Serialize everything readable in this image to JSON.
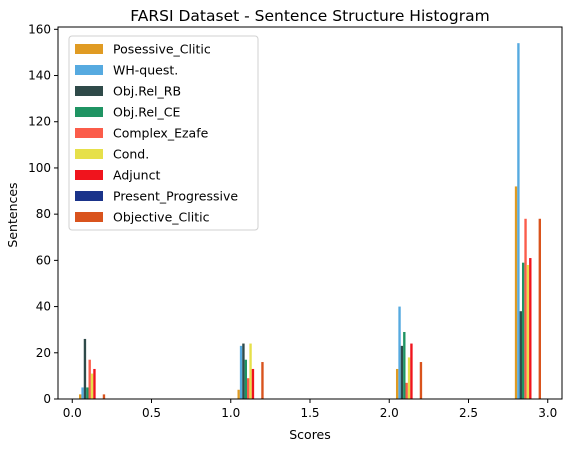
{
  "chart_data": {
    "type": "bar",
    "title": "FARSI Dataset - Sentence Structure Histogram",
    "xlabel": "Scores",
    "ylabel": "Sentences",
    "xlim": [
      -0.09,
      3.09
    ],
    "ylim": [
      0,
      161
    ],
    "xticks": [
      0.0,
      0.5,
      1.0,
      1.5,
      2.0,
      2.5,
      3.0
    ],
    "xtick_labels": [
      "0.0",
      "0.5",
      "1.0",
      "1.5",
      "2.0",
      "2.5",
      "3.0"
    ],
    "yticks": [
      0,
      20,
      40,
      60,
      80,
      100,
      120,
      140,
      160
    ],
    "ytick_labels": [
      "0",
      "20",
      "40",
      "60",
      "80",
      "100",
      "120",
      "140",
      "160"
    ],
    "grid": false,
    "legend_position": "top-left",
    "bar_width": 0.015,
    "series": [
      {
        "name": "Posessive_Clitic",
        "color": "#e09b23",
        "x": [
          0.05,
          1.05,
          2.05,
          2.8
        ],
        "values": [
          2,
          4,
          13,
          92
        ]
      },
      {
        "name": "WH-quest.",
        "color": "#56aae0",
        "x": [
          0.065,
          1.065,
          2.065,
          2.815
        ],
        "values": [
          5,
          23,
          40,
          154
        ]
      },
      {
        "name": "Obj.Rel_RB",
        "color": "#2f4a49",
        "x": [
          0.08,
          1.08,
          2.08,
          2.83
        ],
        "values": [
          26,
          24,
          23,
          38
        ]
      },
      {
        "name": "Obj.Rel_CE",
        "color": "#1f9463",
        "x": [
          0.095,
          1.095,
          2.095,
          2.845
        ],
        "values": [
          5,
          17,
          29,
          59
        ]
      },
      {
        "name": "Complex_Ezafe",
        "color": "#fb5c4a",
        "x": [
          0.11,
          1.11,
          2.11,
          2.86
        ],
        "values": [
          17,
          9,
          7,
          78
        ]
      },
      {
        "name": "Cond.",
        "color": "#e6e04a",
        "x": [
          0.125,
          1.125,
          2.125,
          2.875
        ],
        "values": [
          11,
          24,
          18,
          58
        ]
      },
      {
        "name": "Adjunct",
        "color": "#f0141d",
        "x": [
          0.14,
          1.14,
          2.14,
          2.89
        ],
        "values": [
          13,
          13,
          24,
          61
        ]
      },
      {
        "name": "Present_Progressive",
        "color": "#1a338a",
        "x": [
          0.155,
          1.155,
          2.155,
          2.905
        ],
        "values": [
          0,
          0,
          0,
          0
        ]
      },
      {
        "name": "Objective_Clitic",
        "color": "#d9531d",
        "x": [
          0.2,
          1.2,
          2.2,
          2.95
        ],
        "values": [
          2,
          16,
          16,
          78
        ]
      }
    ]
  }
}
